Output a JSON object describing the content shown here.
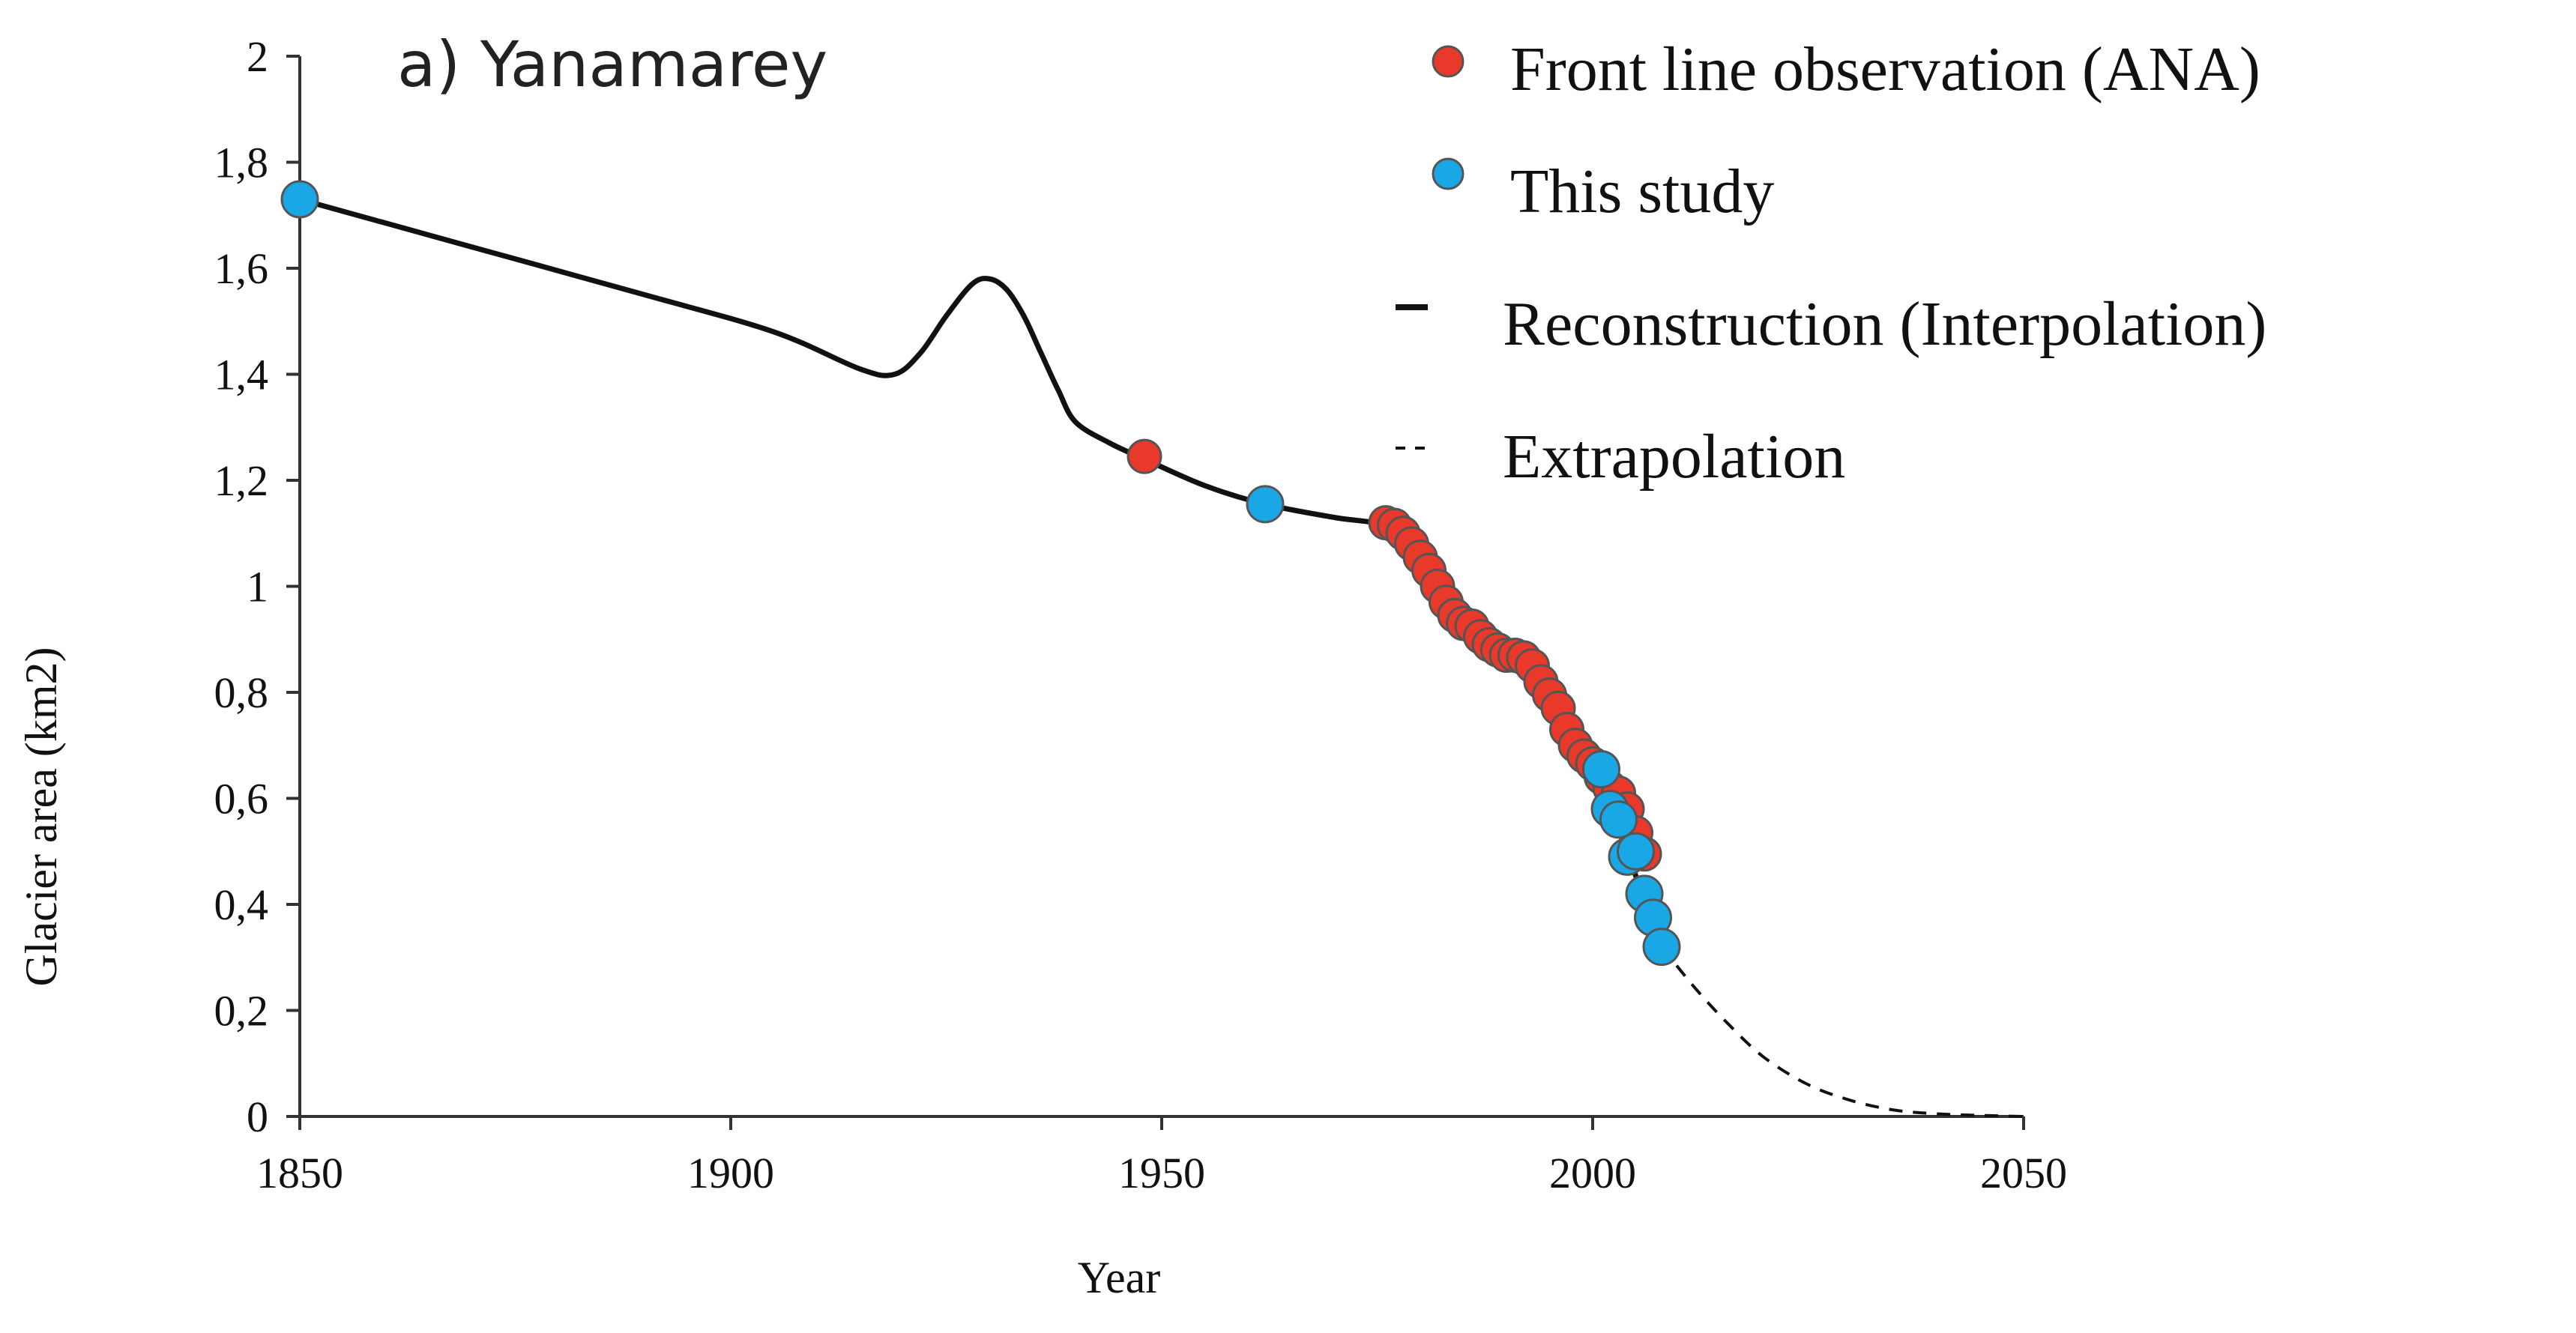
{
  "chart_data": {
    "type": "line",
    "title": "a) Yanamarey",
    "xlabel": "Year",
    "ylabel": "Glacier area (km2)",
    "xlim": [
      1850,
      2050
    ],
    "ylim": [
      0,
      2
    ],
    "x_ticks": [
      1850,
      1900,
      1950,
      2000,
      2050
    ],
    "x_tick_labels": [
      "1850",
      "1900",
      "1950",
      "2000",
      "2050"
    ],
    "y_ticks": [
      0,
      0.2,
      0.4,
      0.6,
      0.8,
      1,
      1.2,
      1.4,
      1.6,
      1.8,
      2
    ],
    "y_tick_labels": [
      "0",
      "0,2",
      "0,4",
      "0,6",
      "0,8",
      "1",
      "1,2",
      "1,4",
      "1,6",
      "1,8",
      "2"
    ],
    "grid": false,
    "legend_position": "top-right",
    "colors": {
      "front_line": "#e8392b",
      "this_study": "#1aa7e6",
      "line": "#111111",
      "marker_edge": "#555555"
    },
    "series": [
      {
        "name": "Front line observation (ANA)",
        "kind": "scatter",
        "x": [
          1948,
          1976,
          1977,
          1978,
          1979,
          1980,
          1981,
          1982,
          1983,
          1984,
          1985,
          1986,
          1987,
          1988,
          1989,
          1990,
          1991,
          1992,
          1993,
          1994,
          1995,
          1996,
          1997,
          1998,
          1999,
          2000,
          2001,
          2002,
          2003,
          2004,
          2005,
          2006
        ],
        "y": [
          1.245,
          1.12,
          1.115,
          1.1,
          1.08,
          1.055,
          1.03,
          1.0,
          0.97,
          0.945,
          0.93,
          0.925,
          0.905,
          0.89,
          0.88,
          0.87,
          0.87,
          0.865,
          0.85,
          0.82,
          0.795,
          0.77,
          0.73,
          0.7,
          0.68,
          0.665,
          0.64,
          0.62,
          0.61,
          0.58,
          0.535,
          0.495
        ]
      },
      {
        "name": "This study",
        "kind": "scatter",
        "x": [
          1850,
          1962,
          2001,
          2002,
          2003,
          2004,
          2005,
          2006,
          2007,
          2008
        ],
        "y": [
          1.73,
          1.155,
          0.655,
          0.58,
          0.56,
          0.49,
          0.5,
          0.42,
          0.375,
          0.32
        ]
      },
      {
        "name": "Reconstruction (Interpolation)",
        "kind": "line",
        "x": [
          1850,
          1870,
          1890,
          1905,
          1915,
          1919,
          1922,
          1925,
          1928,
          1930,
          1932,
          1934,
          1936,
          1938,
          1940,
          1944,
          1948,
          1955,
          1962,
          1970,
          1976,
          1979,
          1982,
          1985,
          1988,
          1991,
          1994,
          1997,
          2000,
          2003,
          2006,
          2008
        ],
        "y": [
          1.73,
          1.64,
          1.55,
          1.48,
          1.41,
          1.4,
          1.44,
          1.51,
          1.57,
          1.58,
          1.56,
          1.51,
          1.44,
          1.37,
          1.31,
          1.27,
          1.24,
          1.19,
          1.155,
          1.13,
          1.115,
          1.08,
          1.0,
          0.935,
          0.9,
          0.87,
          0.84,
          0.76,
          0.66,
          0.54,
          0.41,
          0.32
        ]
      },
      {
        "name": "Extrapolation",
        "kind": "dashed-line",
        "x": [
          2008,
          2012,
          2016,
          2020,
          2025,
          2030,
          2035,
          2040,
          2045,
          2050
        ],
        "y": [
          0.32,
          0.24,
          0.17,
          0.11,
          0.06,
          0.03,
          0.012,
          0.005,
          0.002,
          0.0
        ]
      }
    ]
  }
}
